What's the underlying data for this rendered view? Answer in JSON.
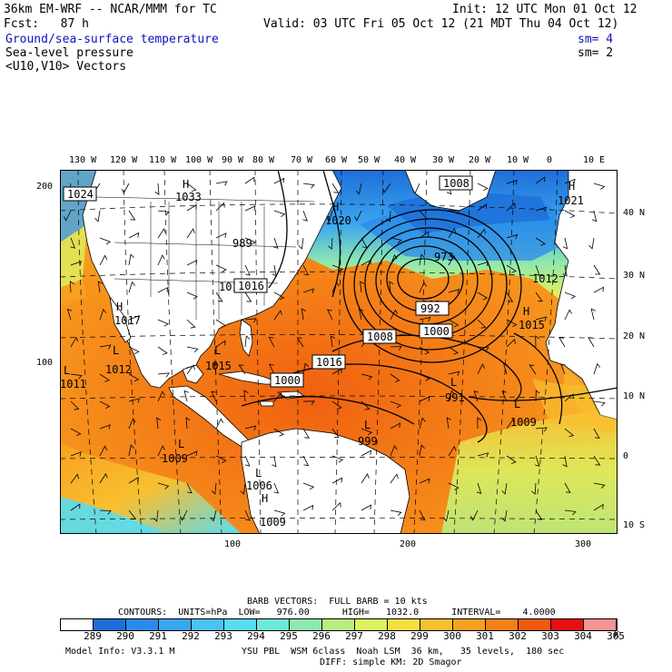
{
  "header": {
    "model": "36km EM-WRF -- NCAR/MMM for TC",
    "init": "Init: 12 UTC Mon 01 Oct 12",
    "fcst": "Fcst:   87 h",
    "valid": "Valid: 03 UTC Fri 05 Oct 12 (21 MDT Thu 04 Oct 12)"
  },
  "fields": [
    {
      "label": "Ground/sea-surface temperature",
      "sm": "sm= 4",
      "color": "#1010c0"
    },
    {
      "label": "Sea-level pressure",
      "sm": "sm= 2",
      "color": "#000000"
    },
    {
      "label": "<U10,V10> Vectors",
      "sm": "",
      "color": "#000000"
    }
  ],
  "axes": {
    "top_lon": [
      "130 W",
      "120 W",
      "110 W",
      "100 W",
      "90 W",
      "80 W",
      "70 W",
      "60 W",
      "50 W",
      "40 W",
      "30 W",
      "20 W",
      "10 W",
      "0",
      "10 E"
    ],
    "right_lat": [
      "40 N",
      "30 N",
      "20 N",
      "10 N",
      "0",
      "10 S"
    ],
    "left_grid": [
      "200",
      "100"
    ],
    "bottom_grid": [
      "100",
      "200",
      "300"
    ]
  },
  "pressure_labels": {
    "highs": [
      {
        "text": "H",
        "value": "1033"
      },
      {
        "text": "H",
        "value": "1020"
      },
      {
        "text": "H",
        "value": "1017"
      },
      {
        "text": "H",
        "value": "1021"
      },
      {
        "text": "H",
        "value": "1015"
      },
      {
        "text": "H",
        "value": "1009"
      }
    ],
    "lows": [
      {
        "text": "L",
        "value": "1015"
      },
      {
        "text": "L",
        "value": "1009"
      },
      {
        "text": "L",
        "value": "999"
      },
      {
        "text": "L",
        "value": "1006"
      },
      {
        "text": "L",
        "value": "991"
      },
      {
        "text": "L",
        "value": "1009"
      },
      {
        "text": "L",
        "value": "1012"
      },
      {
        "text": "L",
        "value": "1011"
      }
    ],
    "contour_boxes": [
      "1024",
      "1008",
      "1016",
      "1008",
      "1016",
      "1000",
      "992",
      "1000",
      "1012"
    ],
    "other": [
      "1016",
      "973",
      "992",
      "989",
      "1012"
    ]
  },
  "footer": {
    "barb_vectors": "BARB VECTORS:  FULL BARB = 10 kts",
    "contours": "CONTOURS:  UNITS=hPa  LOW=   976.00      HIGH=   1032.0      INTERVAL=    4.0000",
    "model_info": "Model Info: V3.3.1 M",
    "physics": "YSU PBL  WSM 6class  Noah LSM  36 km,   35 levels,  180 sec",
    "diff": "DIFF: simple KM: 2D Smagor"
  },
  "colorbar": {
    "unit": "K",
    "labels": [
      "289",
      "290",
      "291",
      "292",
      "293",
      "294",
      "295",
      "296",
      "297",
      "298",
      "299",
      "300",
      "301",
      "302",
      "303",
      "304",
      "305"
    ],
    "colors": [
      "#ffffff",
      "#1e6ed8",
      "#2a8ae8",
      "#3ba6f0",
      "#4ac2f4",
      "#58dcf2",
      "#6ee8d8",
      "#8ee8b0",
      "#b8ec80",
      "#dcf060",
      "#f4e040",
      "#f8c030",
      "#f8a020",
      "#f48018",
      "#f05a10",
      "#e41010",
      "#f49494"
    ]
  }
}
